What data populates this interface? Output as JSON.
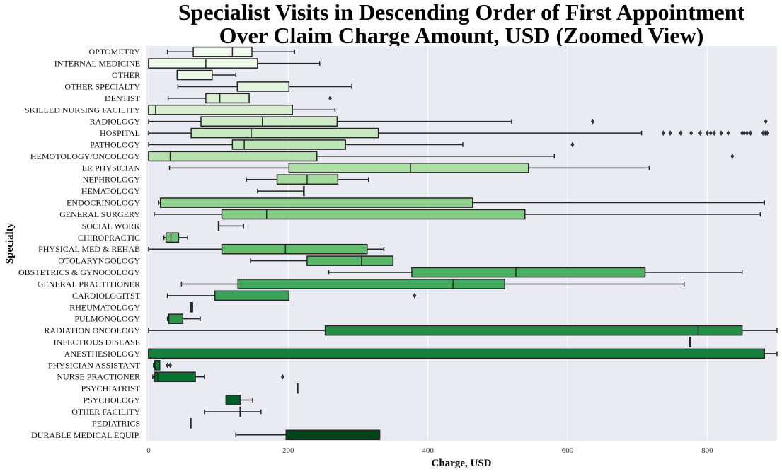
{
  "chart_data": {
    "type": "box",
    "orientation": "horizontal",
    "title_lines": [
      "Specialist Visits in Descending Order of First Appointment",
      "Over Claim Charge Amount, USD (Zoomed View)"
    ],
    "xlabel": "Charge, USD",
    "ylabel": "Specialty",
    "xlim": [
      -3,
      900
    ],
    "xticks": [
      0,
      200,
      400,
      600,
      800
    ],
    "grid": true,
    "legend": false,
    "colormap": "Greens",
    "color_range": [
      "#f2f9ef",
      "#00441b"
    ],
    "categories": [
      {
        "name": "OPTOMETRY",
        "whislo": 27,
        "q1": 64,
        "med": 120,
        "q3": 148,
        "whishi": 209,
        "outliers": []
      },
      {
        "name": "INTERNAL MEDICINE",
        "whislo": 0,
        "q1": 0,
        "med": 82,
        "q3": 156,
        "whishi": 245,
        "outliers": []
      },
      {
        "name": "OTHER",
        "whislo": 41,
        "q1": 41,
        "med": 41,
        "q3": 91,
        "whishi": 125,
        "outliers": []
      },
      {
        "name": "OTHER SPECIALTY",
        "whislo": 42,
        "q1": 127,
        "med": 127,
        "q3": 201,
        "whishi": 291,
        "outliers": []
      },
      {
        "name": "DENTIST",
        "whislo": 28,
        "q1": 82,
        "med": 102,
        "q3": 144,
        "whishi": 144,
        "outliers": [
          260
        ]
      },
      {
        "name": "SKILLED NURSING FACILITY",
        "whislo": 0,
        "q1": 0,
        "med": 10,
        "q3": 206,
        "whishi": 267,
        "outliers": []
      },
      {
        "name": "RADIOLOGY",
        "whislo": 0,
        "q1": 75,
        "med": 163,
        "q3": 270,
        "whishi": 520,
        "outliers": [
          636,
          884
        ]
      },
      {
        "name": "HOSPITAL",
        "whislo": 0,
        "q1": 61,
        "med": 147,
        "q3": 329,
        "whishi": 706,
        "outliers": [
          737,
          747,
          762,
          777,
          790,
          800,
          805,
          810,
          820,
          830,
          850,
          853,
          857,
          862,
          880,
          883,
          886
        ]
      },
      {
        "name": "PATHOLOGY",
        "whislo": 0,
        "q1": 120,
        "med": 137,
        "q3": 282,
        "whishi": 450,
        "outliers": [
          607
        ]
      },
      {
        "name": "HEMOTOLOGY/ONCOLOGY",
        "whislo": 0,
        "q1": 0,
        "med": 31,
        "q3": 241,
        "whishi": 581,
        "outliers": [
          836
        ]
      },
      {
        "name": "ER PHYSICIAN",
        "whislo": 30,
        "q1": 201,
        "med": 375,
        "q3": 544,
        "whishi": 717,
        "outliers": []
      },
      {
        "name": "NEPHROLOGY",
        "whislo": 140,
        "q1": 184,
        "med": 227,
        "q3": 271,
        "whishi": 315,
        "outliers": []
      },
      {
        "name": "HEMATOLOGY",
        "whislo": 156,
        "q1": 222,
        "med": 222,
        "q3": 222,
        "whishi": 222,
        "outliers": []
      },
      {
        "name": "ENDOCRINOLOGY",
        "whislo": 14,
        "q1": 17,
        "med": 17,
        "q3": 464,
        "whishi": 882,
        "outliers": []
      },
      {
        "name": "GENERAL SURGERY",
        "whislo": 8,
        "q1": 105,
        "med": 169,
        "q3": 539,
        "whishi": 876,
        "outliers": []
      },
      {
        "name": "SOCIAL WORK",
        "whislo": 100,
        "q1": 100,
        "med": 100,
        "q3": 100,
        "whishi": 136,
        "outliers": []
      },
      {
        "name": "CHIROPRACTIC",
        "whislo": 22,
        "q1": 25,
        "med": 32,
        "q3": 43,
        "whishi": 56,
        "outliers": []
      },
      {
        "name": "PHYSICAL MED & REHAB",
        "whislo": 0,
        "q1": 105,
        "med": 196,
        "q3": 313,
        "whishi": 337,
        "outliers": []
      },
      {
        "name": "OTOLARYNGOLOGY",
        "whislo": 146,
        "q1": 227,
        "med": 305,
        "q3": 350,
        "whishi": 350,
        "outliers": []
      },
      {
        "name": "OBSTETRICS & GYNOCOLOGY",
        "whislo": 258,
        "q1": 377,
        "med": 526,
        "q3": 711,
        "whishi": 850,
        "outliers": []
      },
      {
        "name": "GENERAL PRACTITIONER",
        "whislo": 47,
        "q1": 128,
        "med": 436,
        "q3": 510,
        "whishi": 767,
        "outliers": []
      },
      {
        "name": "CARDIOLOGITST",
        "whislo": 27,
        "q1": 95,
        "med": 95,
        "q3": 201,
        "whishi": 201,
        "outliers": [
          381
        ]
      },
      {
        "name": "RHEUMATOLOGY",
        "whislo": 60,
        "q1": 60,
        "med": 61,
        "q3": 63,
        "whishi": 63,
        "outliers": []
      },
      {
        "name": "PULMONOLOGY",
        "whislo": 27,
        "q1": 29,
        "med": 29,
        "q3": 49,
        "whishi": 74,
        "outliers": []
      },
      {
        "name": "RADIATION ONCOLOGY",
        "whislo": 0,
        "q1": 253,
        "med": 787,
        "q3": 850,
        "whishi": 900,
        "outliers": []
      },
      {
        "name": "INFECTIOUS DISEASE",
        "whislo": 775,
        "q1": 775,
        "med": 775,
        "q3": 775,
        "whishi": 775,
        "outliers": []
      },
      {
        "name": "ANESTHESIOLOGY",
        "whislo": 0,
        "q1": 0,
        "med": 0,
        "q3": 882,
        "whishi": 900,
        "outliers": []
      },
      {
        "name": "PHYSICIAN ASSISTANT",
        "whislo": 7,
        "q1": 9,
        "med": 9,
        "q3": 16,
        "whishi": 16,
        "outliers": [
          27,
          31
        ]
      },
      {
        "name": "NURSE PRACTIONER",
        "whislo": 6,
        "q1": 9,
        "med": 13,
        "q3": 67,
        "whishi": 80,
        "outliers": [
          192
        ]
      },
      {
        "name": "PSYCHIATRIST",
        "whislo": 213,
        "q1": 213,
        "med": 213,
        "q3": 213,
        "whishi": 213,
        "outliers": []
      },
      {
        "name": "PSYCHOLOGY",
        "whislo": 111,
        "q1": 111,
        "med": 111,
        "q3": 131,
        "whishi": 149,
        "outliers": []
      },
      {
        "name": "OTHER FACILITY",
        "whislo": 80,
        "q1": 131,
        "med": 131,
        "q3": 131,
        "whishi": 161,
        "outliers": []
      },
      {
        "name": "PEDIATRICS",
        "whislo": 60,
        "q1": 60,
        "med": 60,
        "q3": 60,
        "whishi": 60,
        "outliers": []
      },
      {
        "name": "DURABLE MEDICAL EQUIP.",
        "whislo": 125,
        "q1": 197,
        "med": 197,
        "q3": 331,
        "whishi": 331,
        "outliers": []
      }
    ]
  }
}
